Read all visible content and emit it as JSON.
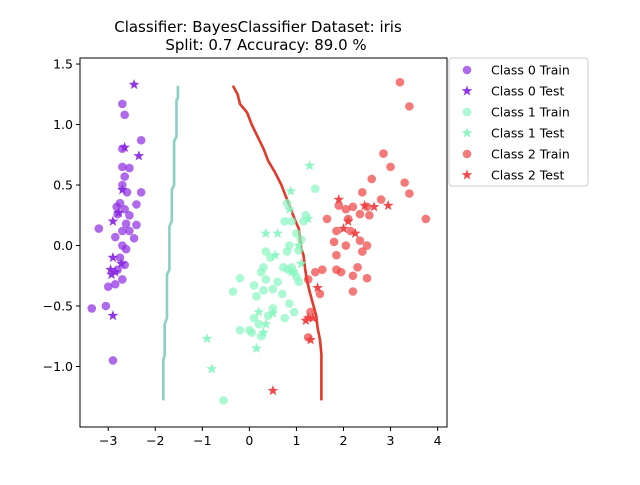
{
  "chart_data": {
    "type": "scatter",
    "title_line1": "Classifier: BayesClassifier  Dataset: iris",
    "title_line2": "Split: 0.7  Accuracy: 89.0 %",
    "xlabel": "",
    "ylabel": "",
    "xlim": [
      -3.6,
      4.2
    ],
    "ylim": [
      -1.5,
      1.55
    ],
    "x_ticks": [
      -3,
      -2,
      -1,
      0,
      1,
      2,
      3,
      4
    ],
    "x_tick_labels": [
      "−3",
      "−2",
      "−1",
      "0",
      "1",
      "2",
      "3",
      "4"
    ],
    "y_ticks": [
      1.5,
      1.0,
      0.5,
      0.0,
      -0.5,
      -1.0
    ],
    "y_tick_labels": [
      "1.5",
      "1.0",
      "0.5",
      "0.0",
      "−0.5",
      "−1.0"
    ],
    "grid": false,
    "legend_position": "outside-right",
    "series": [
      {
        "name": "Class 0 Train",
        "marker": "circle",
        "color": "#8b2be2",
        "points": [
          [
            -3.2,
            0.14
          ],
          [
            -3.35,
            -0.52
          ],
          [
            -3.05,
            -0.5
          ],
          [
            -3.0,
            -0.34
          ],
          [
            -2.9,
            -0.95
          ],
          [
            -2.7,
            1.17
          ],
          [
            -2.65,
            1.08
          ],
          [
            -2.7,
            0.8
          ],
          [
            -2.3,
            0.87
          ],
          [
            -2.7,
            0.65
          ],
          [
            -2.65,
            0.57
          ],
          [
            -2.55,
            0.64
          ],
          [
            -2.7,
            0.5
          ],
          [
            -2.6,
            0.44
          ],
          [
            -2.3,
            0.44
          ],
          [
            -2.75,
            0.35
          ],
          [
            -2.82,
            0.32
          ],
          [
            -2.65,
            0.3
          ],
          [
            -2.4,
            0.34
          ],
          [
            -2.8,
            0.26
          ],
          [
            -2.55,
            0.25
          ],
          [
            -2.62,
            0.18
          ],
          [
            -2.4,
            0.17
          ],
          [
            -2.7,
            0.12
          ],
          [
            -2.55,
            0.12
          ],
          [
            -2.85,
            0.07
          ],
          [
            -2.45,
            0.06
          ],
          [
            -2.7,
            0.0
          ],
          [
            -2.62,
            -0.03
          ],
          [
            -2.75,
            -0.1
          ],
          [
            -2.65,
            -0.16
          ],
          [
            -2.8,
            -0.2
          ],
          [
            -2.7,
            -0.28
          ],
          [
            -2.85,
            -0.32
          ]
        ]
      },
      {
        "name": "Class 0 Test",
        "marker": "star",
        "color": "#8b2be2",
        "points": [
          [
            -2.45,
            1.33
          ],
          [
            -2.65,
            0.81
          ],
          [
            -2.35,
            0.74
          ],
          [
            -2.7,
            0.46
          ],
          [
            -2.78,
            0.27
          ],
          [
            -2.9,
            0.2
          ],
          [
            -2.9,
            -0.1
          ],
          [
            -2.72,
            -0.15
          ],
          [
            -2.95,
            -0.2
          ],
          [
            -2.85,
            -0.22
          ],
          [
            -2.93,
            -0.24
          ],
          [
            -2.9,
            -0.58
          ]
        ]
      },
      {
        "name": "Class 1 Train",
        "marker": "circle",
        "color": "#88f7c0",
        "points": [
          [
            -0.35,
            -0.38
          ],
          [
            -0.2,
            -0.27
          ],
          [
            0.1,
            -0.33
          ],
          [
            0.3,
            -0.37
          ],
          [
            0.25,
            -0.22
          ],
          [
            0.3,
            -0.18
          ],
          [
            0.15,
            -0.42
          ],
          [
            0.35,
            -0.28
          ],
          [
            0.45,
            -0.1
          ],
          [
            0.35,
            -0.05
          ],
          [
            0.5,
            -0.36
          ],
          [
            0.6,
            -0.3
          ],
          [
            0.7,
            -0.4
          ],
          [
            0.72,
            -0.18
          ],
          [
            0.8,
            -0.05
          ],
          [
            0.85,
            0.0
          ],
          [
            0.82,
            -0.2
          ],
          [
            0.9,
            -0.18
          ],
          [
            0.95,
            -0.22
          ],
          [
            1.0,
            -0.26
          ],
          [
            1.05,
            -0.3
          ],
          [
            0.75,
            0.2
          ],
          [
            0.9,
            0.2
          ],
          [
            0.8,
            0.35
          ],
          [
            1.0,
            0.1
          ],
          [
            1.05,
            -0.04
          ],
          [
            1.1,
            0.05
          ],
          [
            1.2,
            0.25
          ],
          [
            1.4,
            0.47
          ],
          [
            1.15,
            0.2
          ],
          [
            0.5,
            -0.52
          ],
          [
            0.4,
            -0.58
          ],
          [
            0.2,
            -0.65
          ],
          [
            0.05,
            -0.72
          ],
          [
            0.0,
            -0.7
          ],
          [
            -0.2,
            -0.7
          ],
          [
            0.1,
            -0.6
          ],
          [
            0.25,
            -0.75
          ],
          [
            0.95,
            -0.55
          ],
          [
            0.85,
            -0.48
          ],
          [
            0.75,
            -0.6
          ],
          [
            -0.55,
            -1.28
          ]
        ]
      },
      {
        "name": "Class 1 Test",
        "marker": "star",
        "color": "#88f7c0",
        "points": [
          [
            1.28,
            0.66
          ],
          [
            0.88,
            0.45
          ],
          [
            0.85,
            0.3
          ],
          [
            1.25,
            0.22
          ],
          [
            1.05,
            0.0
          ],
          [
            0.6,
            0.1
          ],
          [
            0.35,
            0.1
          ],
          [
            0.55,
            -0.08
          ],
          [
            1.1,
            -0.15
          ],
          [
            0.9,
            -0.22
          ],
          [
            0.2,
            -0.55
          ],
          [
            0.5,
            -0.56
          ],
          [
            0.35,
            -0.65
          ],
          [
            0.3,
            -0.72
          ],
          [
            0.15,
            -0.85
          ],
          [
            -0.9,
            -0.77
          ],
          [
            -0.8,
            -1.02
          ]
        ]
      },
      {
        "name": "Class 2 Train",
        "marker": "circle",
        "color": "#f04040",
        "points": [
          [
            3.2,
            1.35
          ],
          [
            3.4,
            1.15
          ],
          [
            2.85,
            0.76
          ],
          [
            3.0,
            0.65
          ],
          [
            2.6,
            0.55
          ],
          [
            3.3,
            0.52
          ],
          [
            3.4,
            0.43
          ],
          [
            2.4,
            0.44
          ],
          [
            2.8,
            0.38
          ],
          [
            2.5,
            0.32
          ],
          [
            1.9,
            0.33
          ],
          [
            2.05,
            0.3
          ],
          [
            2.2,
            0.32
          ],
          [
            2.35,
            0.26
          ],
          [
            2.55,
            0.25
          ],
          [
            2.1,
            0.22
          ],
          [
            1.65,
            0.22
          ],
          [
            3.75,
            0.22
          ],
          [
            2.15,
            0.12
          ],
          [
            1.85,
            0.12
          ],
          [
            2.35,
            0.04
          ],
          [
            2.05,
            0.0
          ],
          [
            1.8,
            0.03
          ],
          [
            1.85,
            -0.08
          ],
          [
            2.5,
            0.0
          ],
          [
            2.4,
            -0.05
          ],
          [
            2.3,
            -0.18
          ],
          [
            1.85,
            -0.2
          ],
          [
            1.95,
            -0.22
          ],
          [
            2.2,
            -0.25
          ],
          [
            2.5,
            -0.27
          ],
          [
            2.2,
            -0.38
          ],
          [
            1.55,
            -0.2
          ],
          [
            1.4,
            -0.22
          ],
          [
            1.25,
            -0.28
          ],
          [
            1.5,
            -0.4
          ],
          [
            1.3,
            -0.55
          ],
          [
            1.25,
            -0.76
          ]
        ]
      },
      {
        "name": "Class 2 Test",
        "marker": "star",
        "color": "#f04040",
        "points": [
          [
            1.9,
            0.38
          ],
          [
            2.45,
            0.33
          ],
          [
            2.65,
            0.32
          ],
          [
            2.95,
            0.33
          ],
          [
            2.1,
            0.2
          ],
          [
            2.0,
            0.14
          ],
          [
            2.25,
            0.1
          ],
          [
            1.45,
            -0.35
          ],
          [
            1.25,
            -0.6
          ],
          [
            1.2,
            -0.62
          ],
          [
            1.35,
            -0.6
          ],
          [
            1.3,
            -0.78
          ],
          [
            0.5,
            -1.2
          ]
        ]
      }
    ],
    "decision_boundaries": [
      {
        "between": "Class 0 / Class 1",
        "color": "#8bcfc6",
        "points": [
          [
            -1.52,
            1.32
          ],
          [
            -1.52,
            1.22
          ],
          [
            -1.55,
            1.2
          ],
          [
            -1.55,
            0.9
          ],
          [
            -1.6,
            0.86
          ],
          [
            -1.6,
            0.5
          ],
          [
            -1.65,
            0.46
          ],
          [
            -1.65,
            0.2
          ],
          [
            -1.7,
            0.16
          ],
          [
            -1.7,
            -0.2
          ],
          [
            -1.75,
            -0.24
          ],
          [
            -1.75,
            -0.6
          ],
          [
            -1.8,
            -0.65
          ],
          [
            -1.8,
            -0.9
          ],
          [
            -1.83,
            -0.95
          ],
          [
            -1.83,
            -1.28
          ]
        ]
      },
      {
        "between": "Class 1 / Class 2",
        "color": "#e03a2a",
        "points": [
          [
            -0.35,
            1.32
          ],
          [
            -0.25,
            1.25
          ],
          [
            -0.2,
            1.17
          ],
          [
            -0.05,
            1.1
          ],
          [
            0.05,
            1.0
          ],
          [
            0.15,
            0.92
          ],
          [
            0.3,
            0.8
          ],
          [
            0.4,
            0.7
          ],
          [
            0.55,
            0.6
          ],
          [
            0.68,
            0.5
          ],
          [
            0.78,
            0.4
          ],
          [
            0.88,
            0.3
          ],
          [
            0.98,
            0.2
          ],
          [
            1.05,
            0.14
          ],
          [
            1.08,
            0.05
          ],
          [
            1.1,
            -0.02
          ],
          [
            1.15,
            -0.08
          ],
          [
            1.18,
            -0.18
          ],
          [
            1.22,
            -0.28
          ],
          [
            1.28,
            -0.38
          ],
          [
            1.35,
            -0.48
          ],
          [
            1.42,
            -0.58
          ],
          [
            1.45,
            -0.68
          ],
          [
            1.5,
            -0.78
          ],
          [
            1.53,
            -0.9
          ],
          [
            1.53,
            -1.28
          ]
        ]
      }
    ]
  }
}
